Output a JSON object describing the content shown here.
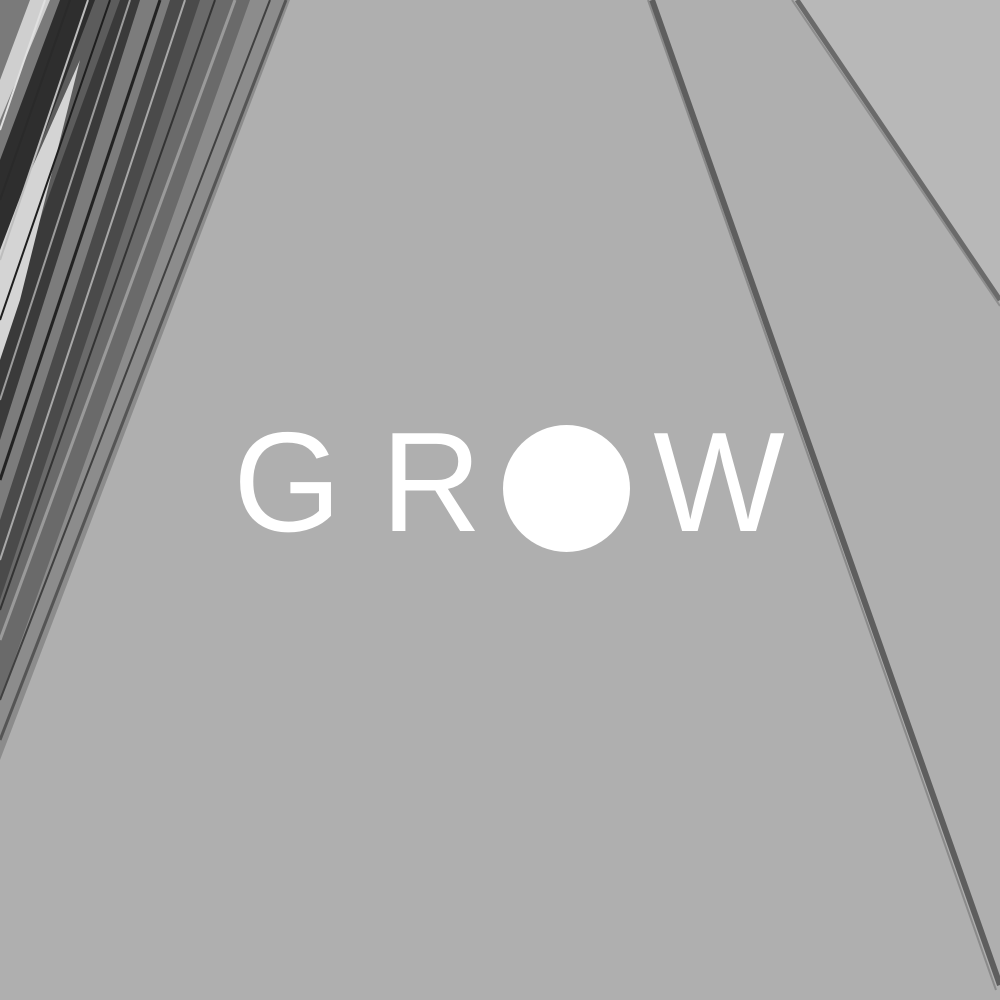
{
  "logo": {
    "letters": [
      "G",
      "R",
      "W"
    ],
    "dot_letter": "O",
    "text_color": "#ffffff"
  },
  "background": {
    "base_color": "#afafaf",
    "right_panel_color": "#b9b9b9",
    "stripe_colors": [
      "#2e2e2e",
      "#5a5a5a",
      "#7a7a7a",
      "#d0d0d0",
      "#3a3a3a"
    ]
  }
}
